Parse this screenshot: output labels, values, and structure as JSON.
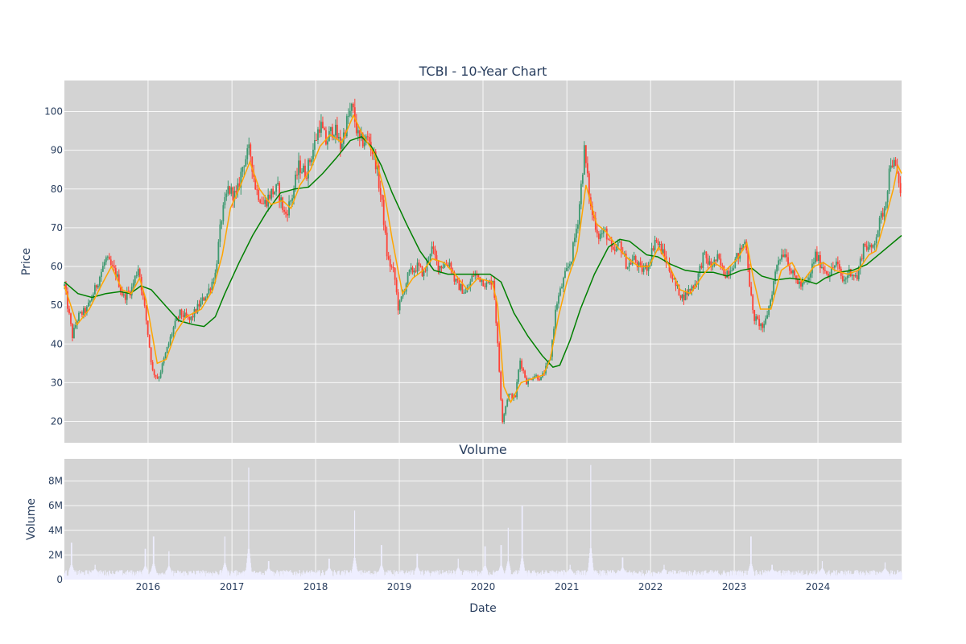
{
  "chart_data": [
    {
      "type": "candlestick",
      "title": "TCBI - 10-Year Chart",
      "xlabel": "",
      "ylabel": "Price",
      "xlim": [
        "2015-01-01",
        "2024-12-31"
      ],
      "ylim": [
        14.5,
        108
      ],
      "grid": true,
      "x_ticks": [
        "2016",
        "2017",
        "2018",
        "2019",
        "2020",
        "2021",
        "2022",
        "2023",
        "2024"
      ],
      "y_ticks": [
        20,
        30,
        40,
        50,
        60,
        70,
        80,
        90,
        100
      ],
      "colors": {
        "up": "#3d9970",
        "down": "#ff4136",
        "short_ma": "#ffa500",
        "long_ma": "#008000",
        "plot_bg": "#d3d3d3"
      },
      "close_path": [
        [
          "2015-01-01",
          55
        ],
        [
          "2015-02-05",
          42
        ],
        [
          "2015-03-01",
          47
        ],
        [
          "2015-04-10",
          49
        ],
        [
          "2015-05-20",
          55
        ],
        [
          "2015-07-01",
          62
        ],
        [
          "2015-08-15",
          58
        ],
        [
          "2015-09-15",
          52
        ],
        [
          "2015-10-20",
          54
        ],
        [
          "2015-11-20",
          60
        ],
        [
          "2015-12-20",
          48
        ],
        [
          "2016-01-20",
          33
        ],
        [
          "2016-02-15",
          31
        ],
        [
          "2016-03-20",
          38
        ],
        [
          "2016-04-20",
          44
        ],
        [
          "2016-05-20",
          48
        ],
        [
          "2016-07-01",
          46
        ],
        [
          "2016-08-10",
          50
        ],
        [
          "2016-09-15",
          53
        ],
        [
          "2016-10-20",
          58
        ],
        [
          "2016-11-15",
          72
        ],
        [
          "2016-12-15",
          80
        ],
        [
          "2017-01-20",
          78
        ],
        [
          "2017-02-20",
          87
        ],
        [
          "2017-03-20",
          90
        ],
        [
          "2017-04-15",
          80
        ],
        [
          "2017-05-20",
          76
        ],
        [
          "2017-06-20",
          79
        ],
        [
          "2017-07-20",
          80
        ],
        [
          "2017-08-20",
          73
        ],
        [
          "2017-09-20",
          78
        ],
        [
          "2017-10-20",
          86
        ],
        [
          "2017-11-20",
          84
        ],
        [
          "2017-12-20",
          90
        ],
        [
          "2018-01-20",
          97
        ],
        [
          "2018-02-15",
          92
        ],
        [
          "2018-03-20",
          96
        ],
        [
          "2018-04-20",
          91
        ],
        [
          "2018-05-20",
          98
        ],
        [
          "2018-06-10",
          101
        ],
        [
          "2018-07-10",
          92
        ],
        [
          "2018-08-20",
          93
        ],
        [
          "2018-09-20",
          87
        ],
        [
          "2018-10-20",
          75
        ],
        [
          "2018-11-10",
          62
        ],
        [
          "2018-12-10",
          58
        ],
        [
          "2018-12-28",
          49
        ],
        [
          "2019-02-10",
          58
        ],
        [
          "2019-03-20",
          60
        ],
        [
          "2019-04-20",
          58
        ],
        [
          "2019-05-20",
          65
        ],
        [
          "2019-06-20",
          60
        ],
        [
          "2019-08-10",
          61
        ],
        [
          "2019-09-01",
          56
        ],
        [
          "2019-10-20",
          53
        ],
        [
          "2019-11-20",
          58
        ],
        [
          "2019-12-20",
          57
        ],
        [
          "2020-01-20",
          55
        ],
        [
          "2020-02-15",
          57
        ],
        [
          "2020-03-10",
          35
        ],
        [
          "2020-03-25",
          20
        ],
        [
          "2020-04-20",
          27
        ],
        [
          "2020-05-20",
          26
        ],
        [
          "2020-06-10",
          36
        ],
        [
          "2020-07-10",
          30
        ],
        [
          "2020-08-10",
          32
        ],
        [
          "2020-09-10",
          31
        ],
        [
          "2020-10-20",
          36
        ],
        [
          "2020-11-15",
          50
        ],
        [
          "2020-12-20",
          57
        ],
        [
          "2021-01-20",
          62
        ],
        [
          "2021-02-20",
          73
        ],
        [
          "2021-03-18",
          90
        ],
        [
          "2021-04-15",
          75
        ],
        [
          "2021-05-20",
          68
        ],
        [
          "2021-06-20",
          69
        ],
        [
          "2021-07-20",
          63
        ],
        [
          "2021-08-20",
          66
        ],
        [
          "2021-09-20",
          60
        ],
        [
          "2021-10-20",
          62
        ],
        [
          "2021-11-20",
          59
        ],
        [
          "2021-12-20",
          60
        ],
        [
          "2022-01-20",
          67
        ],
        [
          "2022-02-20",
          64
        ],
        [
          "2022-03-20",
          60
        ],
        [
          "2022-04-20",
          55
        ],
        [
          "2022-05-20",
          52
        ],
        [
          "2022-06-20",
          54
        ],
        [
          "2022-07-20",
          56
        ],
        [
          "2022-08-20",
          63
        ],
        [
          "2022-09-20",
          60
        ],
        [
          "2022-10-20",
          62
        ],
        [
          "2022-11-20",
          58
        ],
        [
          "2022-12-20",
          60
        ],
        [
          "2023-01-20",
          63
        ],
        [
          "2023-02-20",
          67
        ],
        [
          "2023-03-10",
          55
        ],
        [
          "2023-03-25",
          47
        ],
        [
          "2023-05-10",
          44
        ],
        [
          "2023-06-10",
          52
        ],
        [
          "2023-07-10",
          62
        ],
        [
          "2023-08-10",
          64
        ],
        [
          "2023-09-10",
          58
        ],
        [
          "2023-10-20",
          55
        ],
        [
          "2023-11-20",
          56
        ],
        [
          "2023-12-20",
          63
        ],
        [
          "2024-01-20",
          60
        ],
        [
          "2024-02-20",
          58
        ],
        [
          "2024-03-20",
          61
        ],
        [
          "2024-04-20",
          56
        ],
        [
          "2024-05-20",
          59
        ],
        [
          "2024-06-20",
          57
        ],
        [
          "2024-07-20",
          66
        ],
        [
          "2024-08-20",
          64
        ],
        [
          "2024-09-20",
          70
        ],
        [
          "2024-10-20",
          76
        ],
        [
          "2024-11-15",
          88
        ],
        [
          "2024-12-05",
          85
        ],
        [
          "2024-12-31",
          78
        ]
      ],
      "short_ma": [
        [
          "2015-01-01",
          55
        ],
        [
          "2015-02-25",
          45
        ],
        [
          "2015-04-20",
          49
        ],
        [
          "2015-06-10",
          55
        ],
        [
          "2015-07-25",
          60
        ],
        [
          "2015-09-10",
          54
        ],
        [
          "2015-10-20",
          53
        ],
        [
          "2015-11-25",
          57
        ],
        [
          "2015-12-25",
          51
        ],
        [
          "2016-02-10",
          35
        ],
        [
          "2016-03-20",
          36
        ],
        [
          "2016-05-01",
          43
        ],
        [
          "2016-06-15",
          47
        ],
        [
          "2016-08-20",
          49
        ],
        [
          "2016-10-10",
          54
        ],
        [
          "2016-11-20",
          63
        ],
        [
          "2016-12-25",
          75
        ],
        [
          "2017-02-01",
          80
        ],
        [
          "2017-03-20",
          87
        ],
        [
          "2017-05-01",
          80
        ],
        [
          "2017-06-20",
          76
        ],
        [
          "2017-08-10",
          77
        ],
        [
          "2017-09-15",
          75
        ],
        [
          "2017-10-25",
          81
        ],
        [
          "2017-12-10",
          85
        ],
        [
          "2018-01-20",
          91
        ],
        [
          "2018-03-05",
          94
        ],
        [
          "2018-04-25",
          92
        ],
        [
          "2018-06-15",
          99
        ],
        [
          "2018-07-25",
          94
        ],
        [
          "2018-09-15",
          89
        ],
        [
          "2018-10-25",
          80
        ],
        [
          "2018-12-01",
          67
        ],
        [
          "2019-01-15",
          53
        ],
        [
          "2019-03-01",
          57
        ],
        [
          "2019-04-15",
          59
        ],
        [
          "2019-05-25",
          62
        ],
        [
          "2019-07-15",
          61
        ],
        [
          "2019-09-01",
          58
        ],
        [
          "2019-10-25",
          54
        ],
        [
          "2019-12-10",
          57
        ],
        [
          "2020-02-10",
          56
        ],
        [
          "2020-03-05",
          50
        ],
        [
          "2020-04-01",
          29
        ],
        [
          "2020-05-01",
          25
        ],
        [
          "2020-06-15",
          30
        ],
        [
          "2020-08-01",
          31
        ],
        [
          "2020-09-20",
          32
        ],
        [
          "2020-10-20",
          36
        ],
        [
          "2020-11-25",
          47
        ],
        [
          "2021-01-01",
          56
        ],
        [
          "2021-02-15",
          64
        ],
        [
          "2021-03-25",
          81
        ],
        [
          "2021-05-10",
          71
        ],
        [
          "2021-06-20",
          69
        ],
        [
          "2021-08-10",
          65
        ],
        [
          "2021-09-25",
          62
        ],
        [
          "2021-11-10",
          60
        ],
        [
          "2021-12-25",
          60
        ],
        [
          "2022-02-05",
          65
        ],
        [
          "2022-03-25",
          60
        ],
        [
          "2022-05-10",
          54
        ],
        [
          "2022-06-25",
          53
        ],
        [
          "2022-08-20",
          58
        ],
        [
          "2022-10-05",
          61
        ],
        [
          "2022-11-25",
          59
        ],
        [
          "2023-01-15",
          62
        ],
        [
          "2023-02-25",
          66
        ],
        [
          "2023-03-25",
          57
        ],
        [
          "2023-04-25",
          49
        ],
        [
          "2023-06-10",
          49
        ],
        [
          "2023-07-25",
          59
        ],
        [
          "2023-09-10",
          61
        ],
        [
          "2023-10-25",
          56
        ],
        [
          "2023-12-15",
          60
        ],
        [
          "2024-01-25",
          61
        ],
        [
          "2024-03-15",
          59
        ],
        [
          "2024-05-10",
          58
        ],
        [
          "2024-06-25",
          59
        ],
        [
          "2024-08-10",
          63
        ],
        [
          "2024-09-10",
          64
        ],
        [
          "2024-10-20",
          72
        ],
        [
          "2024-11-25",
          80
        ],
        [
          "2024-12-15",
          86
        ],
        [
          "2024-12-31",
          84
        ]
      ],
      "long_ma": [
        [
          "2015-01-01",
          56
        ],
        [
          "2015-03-01",
          53
        ],
        [
          "2015-05-01",
          52
        ],
        [
          "2015-07-01",
          53
        ],
        [
          "2015-09-01",
          53.5
        ],
        [
          "2015-10-15",
          53
        ],
        [
          "2015-12-01",
          55
        ],
        [
          "2016-01-15",
          54
        ],
        [
          "2016-03-15",
          50
        ],
        [
          "2016-05-15",
          46
        ],
        [
          "2016-07-15",
          45
        ],
        [
          "2016-09-01",
          44.5
        ],
        [
          "2016-10-20",
          47
        ],
        [
          "2016-12-01",
          53
        ],
        [
          "2017-02-01",
          61
        ],
        [
          "2017-04-01",
          68
        ],
        [
          "2017-06-01",
          74
        ],
        [
          "2017-08-01",
          79
        ],
        [
          "2017-10-01",
          80
        ],
        [
          "2017-12-01",
          80.5
        ],
        [
          "2018-02-01",
          84
        ],
        [
          "2018-04-01",
          88
        ],
        [
          "2018-06-01",
          92.5
        ],
        [
          "2018-07-20",
          93.5
        ],
        [
          "2018-09-01",
          91
        ],
        [
          "2018-10-15",
          86
        ],
        [
          "2018-12-01",
          79
        ],
        [
          "2019-02-01",
          71
        ],
        [
          "2019-04-01",
          64
        ],
        [
          "2019-06-01",
          59
        ],
        [
          "2019-08-01",
          58
        ],
        [
          "2019-10-01",
          58
        ],
        [
          "2019-12-01",
          58
        ],
        [
          "2020-02-01",
          58
        ],
        [
          "2020-03-20",
          56
        ],
        [
          "2020-05-15",
          48
        ],
        [
          "2020-07-15",
          42
        ],
        [
          "2020-09-15",
          37
        ],
        [
          "2020-11-01",
          34
        ],
        [
          "2020-12-01",
          34.5
        ],
        [
          "2021-01-15",
          41
        ],
        [
          "2021-03-01",
          49
        ],
        [
          "2021-05-01",
          58
        ],
        [
          "2021-07-01",
          65
        ],
        [
          "2021-08-20",
          67
        ],
        [
          "2021-10-01",
          66.5
        ],
        [
          "2021-12-15",
          63
        ],
        [
          "2022-02-01",
          62.5
        ],
        [
          "2022-04-01",
          60.5
        ],
        [
          "2022-06-01",
          59
        ],
        [
          "2022-08-01",
          58.5
        ],
        [
          "2022-10-01",
          58.5
        ],
        [
          "2022-12-01",
          57.5
        ],
        [
          "2023-02-01",
          59
        ],
        [
          "2023-03-20",
          59.5
        ],
        [
          "2023-05-01",
          57.5
        ],
        [
          "2023-07-01",
          56.5
        ],
        [
          "2023-09-01",
          57
        ],
        [
          "2023-11-01",
          56.5
        ],
        [
          "2023-12-25",
          55.5
        ],
        [
          "2024-02-01",
          57
        ],
        [
          "2024-04-01",
          58.5
        ],
        [
          "2024-06-01",
          59
        ],
        [
          "2024-08-01",
          60.5
        ],
        [
          "2024-10-01",
          63.5
        ],
        [
          "2024-12-31",
          68
        ]
      ]
    },
    {
      "type": "bar",
      "title": "Volume",
      "xlabel": "Date",
      "ylabel": "Volume",
      "xlim": [
        "2015-01-01",
        "2024-12-31"
      ],
      "ylim": [
        0,
        9800000
      ],
      "grid": true,
      "x_ticks": [
        "2016",
        "2017",
        "2018",
        "2019",
        "2020",
        "2021",
        "2022",
        "2023",
        "2024"
      ],
      "y_ticks": [
        0,
        2000000,
        4000000,
        6000000,
        8000000
      ],
      "y_tick_labels": [
        "0",
        "2M",
        "4M",
        "6M",
        "8M"
      ],
      "colors": {
        "bar": "#eeeeff",
        "plot_bg": "#d3d3d3"
      },
      "baseline": 600000,
      "spikes": [
        [
          "2015-02-01",
          3000000
        ],
        [
          "2015-05-15",
          1200000
        ],
        [
          "2015-12-20",
          2500000
        ],
        [
          "2016-01-25",
          3500000
        ],
        [
          "2016-04-01",
          2300000
        ],
        [
          "2016-12-01",
          3500000
        ],
        [
          "2017-03-15",
          9100000
        ],
        [
          "2017-06-10",
          1500000
        ],
        [
          "2018-03-01",
          1700000
        ],
        [
          "2018-06-20",
          5600000
        ],
        [
          "2018-10-15",
          2800000
        ],
        [
          "2019-03-20",
          2100000
        ],
        [
          "2019-09-15",
          1700000
        ],
        [
          "2020-01-10",
          2700000
        ],
        [
          "2020-03-20",
          2800000
        ],
        [
          "2020-04-20",
          4200000
        ],
        [
          "2020-06-20",
          6000000
        ],
        [
          "2021-01-15",
          1200000
        ],
        [
          "2021-04-15",
          9300000
        ],
        [
          "2021-09-01",
          1800000
        ],
        [
          "2022-03-01",
          1200000
        ],
        [
          "2023-03-15",
          3500000
        ],
        [
          "2023-06-15",
          1200000
        ],
        [
          "2024-01-20",
          1500000
        ],
        [
          "2024-10-20",
          1400000
        ]
      ]
    }
  ]
}
